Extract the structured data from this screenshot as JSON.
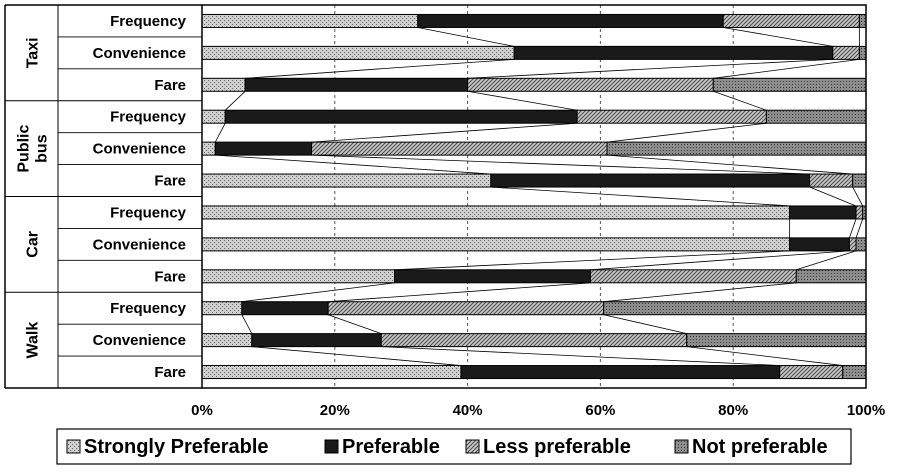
{
  "chart_data": {
    "type": "bar",
    "orientation": "horizontal",
    "stacked": "percent",
    "xlim": [
      0,
      100
    ],
    "x_ticks": [
      "0%",
      "20%",
      "40%",
      "60%",
      "80%",
      "100%"
    ],
    "grid": "vertical dashed",
    "legend_position": "bottom",
    "groups": [
      {
        "label": "Taxi",
        "rows": [
          "Frequency",
          "Convenience",
          "Fare"
        ]
      },
      {
        "label": "Public bus",
        "label_lines": [
          "Public",
          "bus"
        ],
        "rows": [
          "Frequency",
          "Convenience",
          "Fare"
        ]
      },
      {
        "label": "Car",
        "rows": [
          "Frequency",
          "Convenience",
          "Fare"
        ]
      },
      {
        "label": "Walk",
        "rows": [
          "Frequency",
          "Convenience",
          "Fare"
        ]
      }
    ],
    "categories": [
      "Taxi – Frequency",
      "Taxi – Convenience",
      "Taxi – Fare",
      "Public bus – Frequency",
      "Public bus – Convenience",
      "Public bus – Fare",
      "Car – Frequency",
      "Car – Convenience",
      "Car – Fare",
      "Walk – Frequency",
      "Walk – Convenience",
      "Walk – Fare"
    ],
    "series": [
      {
        "name": "Strongly Preferable",
        "color": "#bdbdbd",
        "values": [
          32.5,
          47.0,
          6.5,
          3.5,
          2.0,
          43.5,
          88.5,
          88.5,
          29.0,
          6.0,
          7.5,
          39.0
        ]
      },
      {
        "name": "Preferable",
        "color": "#1a1a1a",
        "values": [
          46.0,
          48.0,
          33.5,
          53.0,
          14.5,
          48.0,
          10.0,
          9.0,
          29.5,
          13.0,
          19.5,
          48.0
        ]
      },
      {
        "name": "Less preferable",
        "color": "#9c9c9c",
        "values": [
          20.5,
          4.0,
          37.0,
          28.5,
          44.5,
          6.5,
          1.0,
          1.0,
          31.0,
          41.5,
          46.0,
          9.5
        ]
      },
      {
        "name": "Not preferable",
        "color": "#7a7a7a",
        "values": [
          1.0,
          1.0,
          23.0,
          15.0,
          39.0,
          2.0,
          0.5,
          1.5,
          10.5,
          39.5,
          27.0,
          3.5
        ]
      }
    ]
  }
}
